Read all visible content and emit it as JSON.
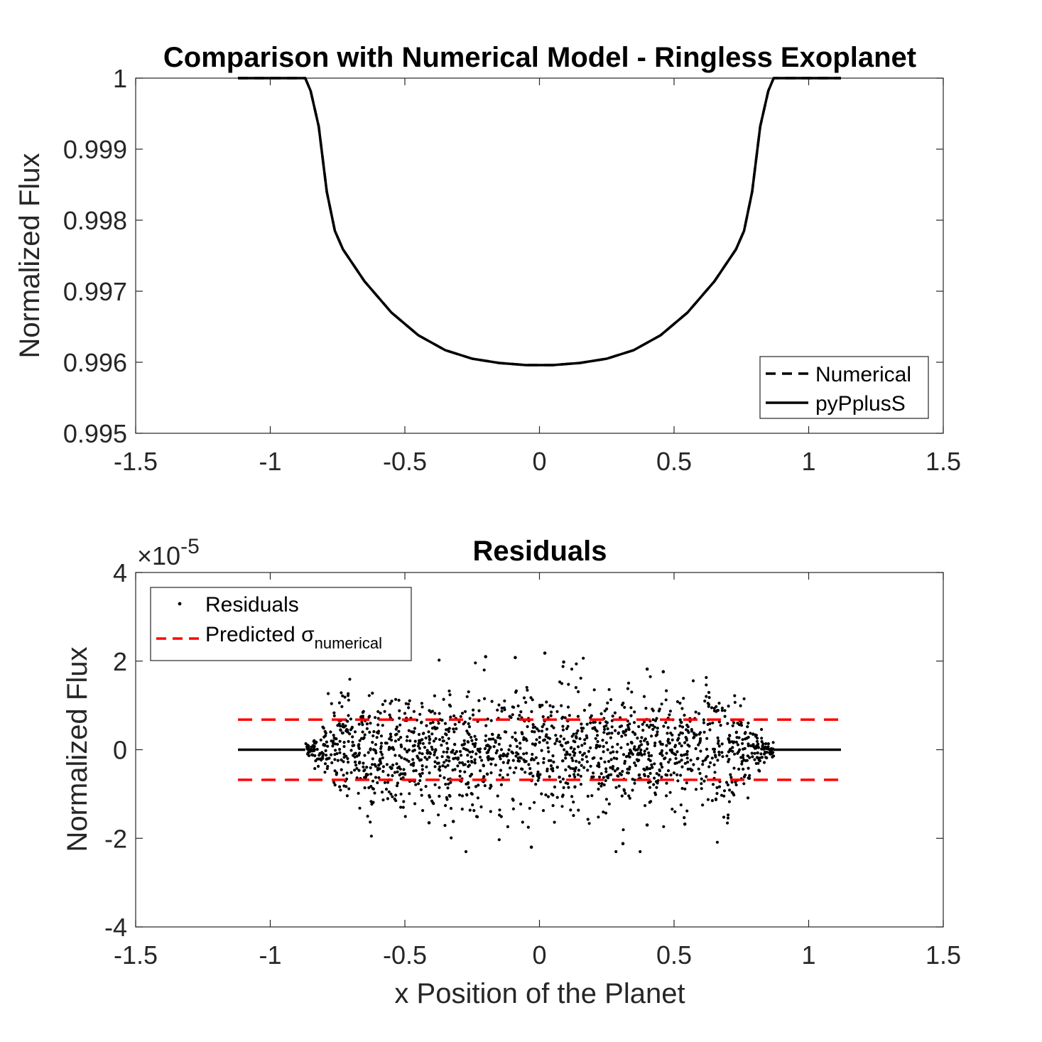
{
  "chart_data": [
    {
      "type": "line",
      "title": "Comparison with Numerical Model - Ringless Exoplanet",
      "xlabel": "",
      "ylabel": "Normalized Flux",
      "xlim": [
        -1.5,
        1.5
      ],
      "ylim": [
        0.995,
        1.0
      ],
      "xticks": [
        -1.5,
        -1,
        -0.5,
        0,
        0.5,
        1,
        1.5
      ],
      "xtick_labels": [
        "-1.5",
        "-1",
        "-0.5",
        "0",
        "0.5",
        "1",
        "1.5"
      ],
      "yticks": [
        0.995,
        0.996,
        0.997,
        0.998,
        0.999,
        1.0
      ],
      "ytick_labels": [
        "0.995",
        "0.996",
        "0.997",
        "0.998",
        "0.999",
        "1"
      ],
      "legend": {
        "location": "bottom-right",
        "entries": [
          "Numerical",
          "pyPplusS"
        ]
      },
      "series": [
        {
          "name": "Numerical",
          "style": "dashed",
          "color": "#000000",
          "x": [
            -1.12,
            -0.87,
            -0.85,
            -0.82,
            -0.79,
            -0.76,
            -0.73,
            -0.65,
            -0.55,
            -0.45,
            -0.35,
            -0.25,
            -0.15,
            -0.05,
            0.0,
            0.05,
            0.15,
            0.25,
            0.35,
            0.45,
            0.55,
            0.65,
            0.73,
            0.76,
            0.79,
            0.82,
            0.85,
            0.87,
            1.12
          ],
          "values": [
            1.0,
            1.0,
            0.99982,
            0.99932,
            0.9984,
            0.99785,
            0.99759,
            0.99714,
            0.9967,
            0.99638,
            0.99617,
            0.99605,
            0.99599,
            0.99596,
            0.99596,
            0.99596,
            0.99599,
            0.99605,
            0.99617,
            0.99638,
            0.9967,
            0.99714,
            0.99759,
            0.99785,
            0.9984,
            0.99932,
            0.99982,
            1.0,
            1.0
          ]
        },
        {
          "name": "pyPplusS",
          "style": "solid",
          "color": "#000000",
          "x": [
            -1.12,
            -0.87,
            -0.85,
            -0.82,
            -0.79,
            -0.76,
            -0.73,
            -0.65,
            -0.55,
            -0.45,
            -0.35,
            -0.25,
            -0.15,
            -0.05,
            0.0,
            0.05,
            0.15,
            0.25,
            0.35,
            0.45,
            0.55,
            0.65,
            0.73,
            0.76,
            0.79,
            0.82,
            0.85,
            0.87,
            1.12
          ],
          "values": [
            1.0,
            1.0,
            0.99982,
            0.99932,
            0.9984,
            0.99785,
            0.99759,
            0.99714,
            0.9967,
            0.99638,
            0.99617,
            0.99605,
            0.99599,
            0.99596,
            0.99596,
            0.99596,
            0.99599,
            0.99605,
            0.99617,
            0.99638,
            0.9967,
            0.99714,
            0.99759,
            0.99785,
            0.9984,
            0.99932,
            0.99982,
            1.0,
            1.0
          ]
        }
      ]
    },
    {
      "type": "scatter",
      "title": "Residuals",
      "xlabel": "x Position of the Planet",
      "ylabel": "Normalized Flux",
      "y_exponent_label": "×10",
      "y_exponent": "-5",
      "xlim": [
        -1.5,
        1.5
      ],
      "ylim": [
        -4,
        4
      ],
      "xticks": [
        -1.5,
        -1,
        -0.5,
        0,
        0.5,
        1,
        1.5
      ],
      "xtick_labels": [
        "-1.5",
        "-1",
        "-0.5",
        "0",
        "0.5",
        "1",
        "1.5"
      ],
      "yticks": [
        -4,
        -2,
        0,
        2,
        4
      ],
      "ytick_labels": [
        "-4",
        "-2",
        "0",
        "2",
        "4"
      ],
      "legend": {
        "location": "top-left",
        "entries": [
          "Residuals",
          "Predicted σ"
        ],
        "subscript": "numerical"
      },
      "scatter_spec": {
        "x_range": [
          -0.87,
          0.87
        ],
        "approx_count": 1700,
        "std_center": 0.65,
        "flat_segments": [
          [
            -1.12,
            -0.87
          ],
          [
            0.87,
            1.12
          ]
        ]
      },
      "notable_points": [
        {
          "x": -0.2,
          "y": 2.1
        },
        {
          "x": -0.09,
          "y": 2.08
        },
        {
          "x": 0.02,
          "y": 2.18
        },
        {
          "x": 0.09,
          "y": 1.98
        },
        {
          "x": 0.4,
          "y": 1.82
        },
        {
          "x": 0.46,
          "y": 1.76
        },
        {
          "x": -0.03,
          "y": -2.2
        },
        {
          "x": 0.31,
          "y": -2.12
        },
        {
          "x": -0.41,
          "y": -1.65
        },
        {
          "x": -0.32,
          "y": -1.62
        },
        {
          "x": 0.4,
          "y": -1.7
        },
        {
          "x": 0.54,
          "y": -1.68
        }
      ],
      "series": [
        {
          "name": "Predicted σ upper",
          "color": "#ff0000",
          "style": "dashed",
          "x": [
            -1.12,
            1.12
          ],
          "values": [
            0.68,
            0.68
          ]
        },
        {
          "name": "Predicted σ lower",
          "color": "#ff0000",
          "style": "dashed",
          "x": [
            -1.12,
            1.12
          ],
          "values": [
            -0.68,
            -0.68
          ]
        }
      ]
    }
  ]
}
